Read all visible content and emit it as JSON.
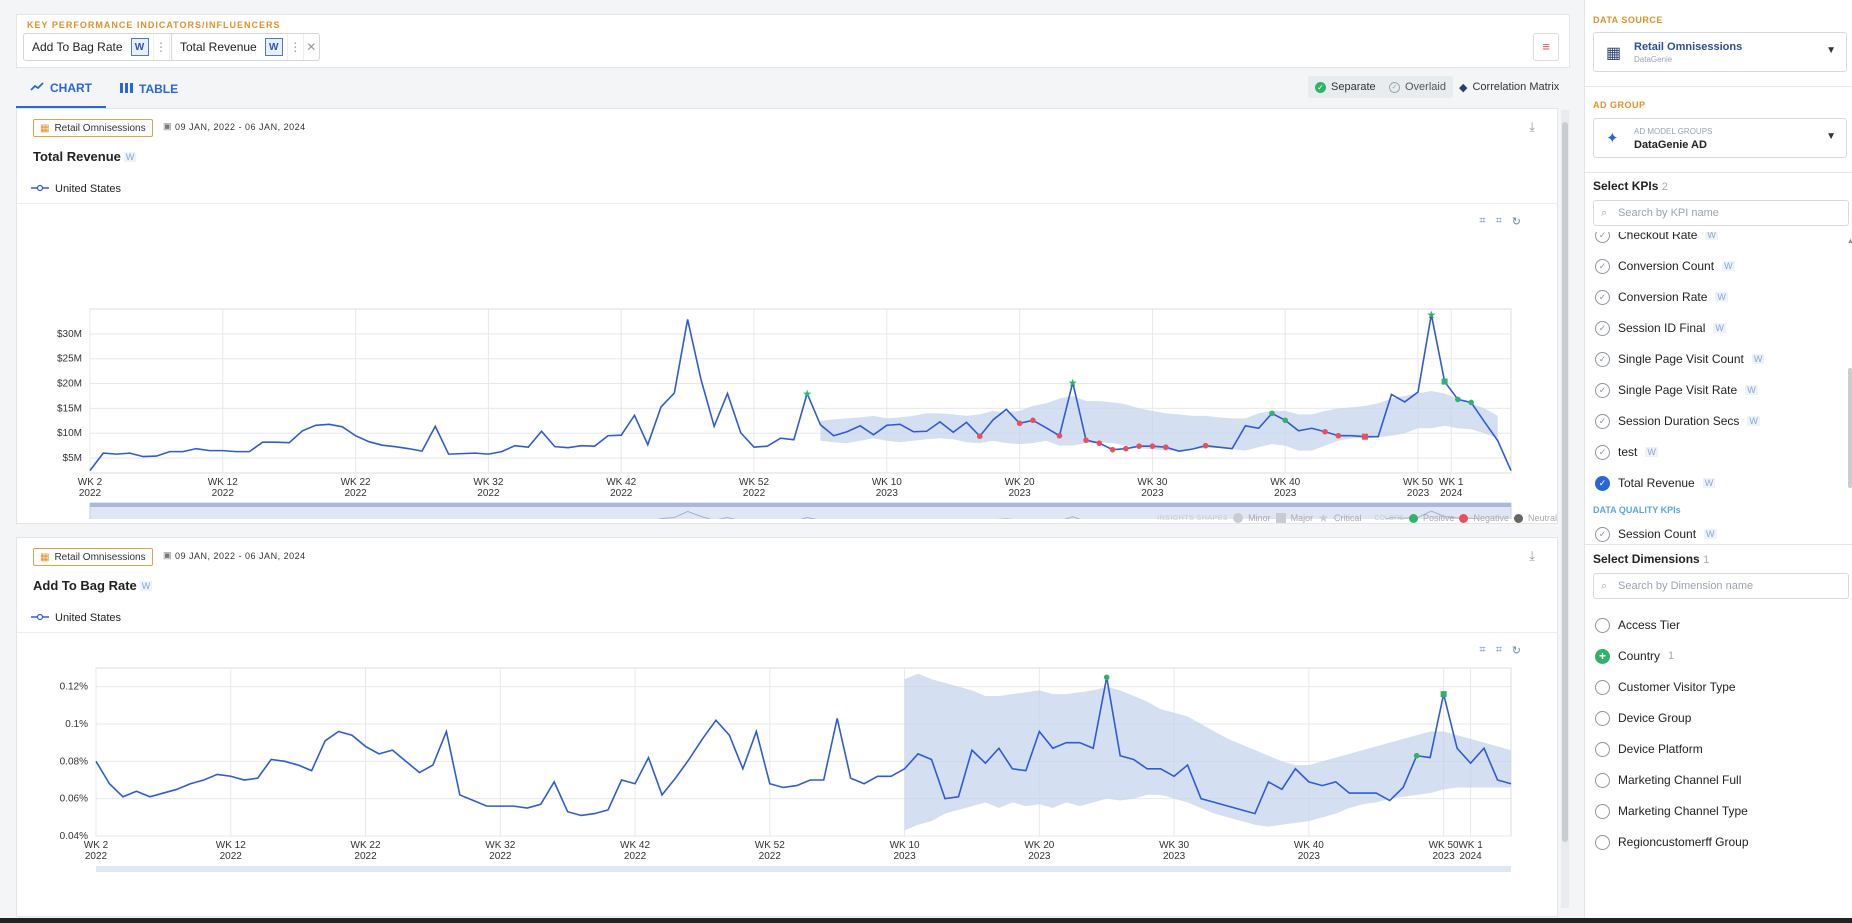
{
  "kpi_bar": {
    "title": "KEY PERFORMANCE INDICATORS/INFLUENCERS",
    "chips": [
      {
        "label": "Add To Bag Rate",
        "badge": "W"
      },
      {
        "label": "Total Revenue",
        "badge": "W"
      }
    ]
  },
  "tabs": [
    {
      "label": "CHART"
    },
    {
      "label": "TABLE"
    }
  ],
  "modes": [
    "Separate",
    "Overlaid",
    "Correlation Matrix"
  ],
  "panels": [
    {
      "source": "Retail Omnisessions",
      "date_range": "09 JAN, 2022 - 06 JAN, 2024",
      "title": "Total Revenue",
      "badge": "W",
      "legend": "United States"
    },
    {
      "source": "Retail Omnisessions",
      "date_range": "09 JAN, 2022 - 06 JAN, 2024",
      "title": "Add To Bag Rate",
      "badge": "W",
      "legend": "United States"
    }
  ],
  "insights_legend": {
    "shapes_label": "INSIGHTS SHAPES",
    "minor": "Minor",
    "major": "Major",
    "critical": "Critical",
    "colors_label": "COLORS",
    "positive": "Positive",
    "negative": "Negative",
    "neutral": "Neutral"
  },
  "sidebar": {
    "data_source_label": "DATA SOURCE",
    "data_source": {
      "name": "Retail Omnisessions",
      "sub": "DataGenie"
    },
    "ad_group_label": "AD GROUP",
    "ad_group": {
      "sub": "AD MODEL GROUPS",
      "name": "DataGenie AD"
    },
    "select_kpis": {
      "label": "Select KPIs",
      "count": "2"
    },
    "kpi_search_placeholder": "Search by KPI name",
    "kpis": [
      {
        "label": "Checkout Rate",
        "checked": false
      },
      {
        "label": "Conversion Count",
        "checked": false
      },
      {
        "label": "Conversion Rate",
        "checked": false
      },
      {
        "label": "Session ID Final",
        "checked": false
      },
      {
        "label": "Single Page Visit Count",
        "checked": false
      },
      {
        "label": "Single Page Visit Rate",
        "checked": false
      },
      {
        "label": "Session Duration Secs",
        "checked": false
      },
      {
        "label": "test",
        "checked": false
      },
      {
        "label": "Total Revenue",
        "checked": true
      }
    ],
    "data_quality_label": "DATA QUALITY KPIs",
    "data_quality_partial": "Session Count",
    "select_dimensions": {
      "label": "Select Dimensions",
      "count": "1"
    },
    "dim_search_placeholder": "Search by Dimension name",
    "dimensions": [
      {
        "label": "Access Tier",
        "count": ""
      },
      {
        "label": "Country",
        "count": "1"
      },
      {
        "label": "Customer Visitor Type",
        "count": ""
      },
      {
        "label": "Device Group",
        "count": ""
      },
      {
        "label": "Device Platform",
        "count": ""
      },
      {
        "label": "Marketing Channel Full",
        "count": ""
      },
      {
        "label": "Marketing Channel Type",
        "count": ""
      },
      {
        "label": "Regioncustomerff Group",
        "count": ""
      }
    ]
  },
  "chart_data": [
    {
      "type": "line",
      "title": "Total Revenue",
      "series_name": "United States",
      "x_ticks": [
        "WK 2 2022",
        "WK 12 2022",
        "WK 22 2022",
        "WK 32 2022",
        "WK 42 2022",
        "WK 52 2022",
        "WK 10 2023",
        "WK 20 2023",
        "WK 30 2023",
        "WK 40 2023",
        "WK 50 2023",
        "WK 1 2024"
      ],
      "y_ticks": [
        "$5M",
        "$10M",
        "$15M",
        "$20M",
        "$25M",
        "$30M"
      ],
      "ylim": [
        2,
        35
      ],
      "values": [
        2.5,
        6,
        5.8,
        6,
        5.3,
        5.4,
        6.3,
        6.3,
        6.9,
        6.5,
        6.5,
        6.3,
        6.3,
        8.2,
        8.2,
        8.1,
        10.5,
        11.6,
        11.8,
        11.3,
        9.5,
        8.3,
        7.6,
        7.3,
        6.9,
        6.4,
        11.4,
        5.8,
        5.9,
        6,
        5.8,
        6.3,
        7.5,
        7.2,
        10.4,
        7.3,
        7.1,
        7.5,
        7.4,
        9.5,
        9.6,
        13.6,
        7.7,
        15.3,
        18.1,
        32.9,
        20.9,
        11.4,
        18,
        10.1,
        7.2,
        7.4,
        9,
        8.7,
        18,
        11.7,
        9.5,
        10.3,
        11.5,
        9.7,
        11.6,
        11.8,
        10.3,
        10.4,
        12.3,
        10.2,
        12.2,
        9.4,
        12.7,
        14.8,
        12,
        12.6,
        11.1,
        9.5,
        20.2,
        8.6,
        8,
        6.7,
        6.9,
        7.4,
        7.4,
        7.2,
        6.4,
        6.8,
        7.5,
        7.2,
        6.9,
        11.5,
        11,
        14,
        12.6,
        10.5,
        11,
        10.3,
        9.5,
        9.5,
        9.3,
        9.3,
        17.8,
        16.3,
        18.3,
        33.9,
        20.4,
        16.8,
        16.2,
        12.3,
        8.5,
        2.5
      ],
      "band_start_index": 55,
      "band_low": [
        8.5,
        8.2,
        8,
        8.5,
        9,
        8.5,
        8.2,
        8.5,
        8.8,
        9,
        8.8,
        8.2,
        8,
        8.5,
        8,
        7.8,
        8,
        8.5,
        7.5,
        7.5,
        8,
        8.2,
        8,
        7.5,
        7,
        6.8,
        6.5,
        6.5,
        6.8,
        7,
        7,
        6.8,
        6.5,
        7.2,
        7.8,
        7.5,
        6.5,
        6.5,
        7.5,
        8.5,
        9,
        9,
        9.2,
        9.5,
        10,
        11,
        11,
        11.5,
        11,
        10.8,
        10,
        9
      ],
      "band_high": [
        12.5,
        12.8,
        13,
        13.2,
        13.5,
        13,
        13.2,
        13.5,
        14,
        14,
        13.8,
        13.5,
        13.8,
        14.5,
        14.2,
        14.5,
        15.5,
        16,
        17,
        17.5,
        16.5,
        16.5,
        16.2,
        15.8,
        15,
        14.5,
        14,
        13.8,
        13.5,
        13.5,
        13.2,
        13,
        13,
        14,
        14.5,
        14.5,
        13.8,
        13.8,
        14.5,
        15,
        15.2,
        15.5,
        16,
        17,
        17.5,
        18,
        18.5,
        18,
        17,
        16,
        15,
        13.5
      ]
    },
    {
      "type": "line",
      "title": "Add To Bag Rate",
      "series_name": "United States",
      "x_ticks": [
        "WK 2 2022",
        "WK 12 2022",
        "WK 22 2022",
        "WK 32 2022",
        "WK 42 2022",
        "WK 52 2022",
        "WK 10 2023",
        "WK 20 2023",
        "WK 30 2023",
        "WK 40 2023",
        "WK 50 2023",
        "WK 1 2024"
      ],
      "y_ticks": [
        "0.04%",
        "0.06%",
        "0.08%",
        "0.1%",
        "0.12%"
      ],
      "ylim": [
        0.04,
        0.13
      ],
      "values": [
        0.08,
        0.068,
        0.061,
        0.064,
        0.061,
        0.063,
        0.065,
        0.068,
        0.07,
        0.073,
        0.072,
        0.07,
        0.071,
        0.081,
        0.08,
        0.078,
        0.075,
        0.091,
        0.096,
        0.094,
        0.088,
        0.084,
        0.086,
        0.08,
        0.074,
        0.078,
        0.096,
        0.062,
        0.059,
        0.056,
        0.056,
        0.056,
        0.055,
        0.057,
        0.069,
        0.053,
        0.051,
        0.052,
        0.054,
        0.07,
        0.068,
        0.082,
        0.062,
        0.071,
        0.081,
        0.092,
        0.102,
        0.094,
        0.076,
        0.096,
        0.068,
        0.066,
        0.067,
        0.07,
        0.07,
        0.103,
        0.071,
        0.068,
        0.072,
        0.072,
        0.076,
        0.084,
        0.081,
        0.06,
        0.061,
        0.086,
        0.079,
        0.087,
        0.076,
        0.075,
        0.096,
        0.087,
        0.09,
        0.09,
        0.087,
        0.125,
        0.083,
        0.081,
        0.076,
        0.076,
        0.072,
        0.078,
        0.06,
        0.058,
        0.056,
        0.054,
        0.052,
        0.069,
        0.065,
        0.076,
        0.069,
        0.067,
        0.069,
        0.063,
        0.063,
        0.063,
        0.059,
        0.066,
        0.083,
        0.082,
        0.116,
        0.087,
        0.079,
        0.087,
        0.07,
        0.068
      ],
      "band_start_index": 60,
      "band_low": [
        0.043,
        0.046,
        0.048,
        0.052,
        0.054,
        0.056,
        0.058,
        0.055,
        0.058,
        0.056,
        0.057,
        0.055,
        0.058,
        0.056,
        0.058,
        0.06,
        0.059,
        0.06,
        0.062,
        0.062,
        0.06,
        0.058,
        0.055,
        0.052,
        0.05,
        0.048,
        0.046,
        0.045,
        0.046,
        0.047,
        0.048,
        0.05,
        0.052,
        0.055,
        0.057,
        0.058,
        0.06,
        0.061,
        0.062,
        0.063,
        0.065,
        0.066,
        0.066,
        0.066,
        0.066,
        0.066
      ],
      "band_high": [
        0.124,
        0.127,
        0.124,
        0.122,
        0.12,
        0.118,
        0.115,
        0.115,
        0.116,
        0.117,
        0.118,
        0.116,
        0.116,
        0.117,
        0.118,
        0.12,
        0.118,
        0.115,
        0.112,
        0.108,
        0.106,
        0.104,
        0.1,
        0.096,
        0.092,
        0.089,
        0.086,
        0.083,
        0.08,
        0.078,
        0.078,
        0.08,
        0.082,
        0.084,
        0.086,
        0.088,
        0.09,
        0.092,
        0.094,
        0.096,
        0.096,
        0.094,
        0.092,
        0.09,
        0.088,
        0.086
      ]
    }
  ]
}
